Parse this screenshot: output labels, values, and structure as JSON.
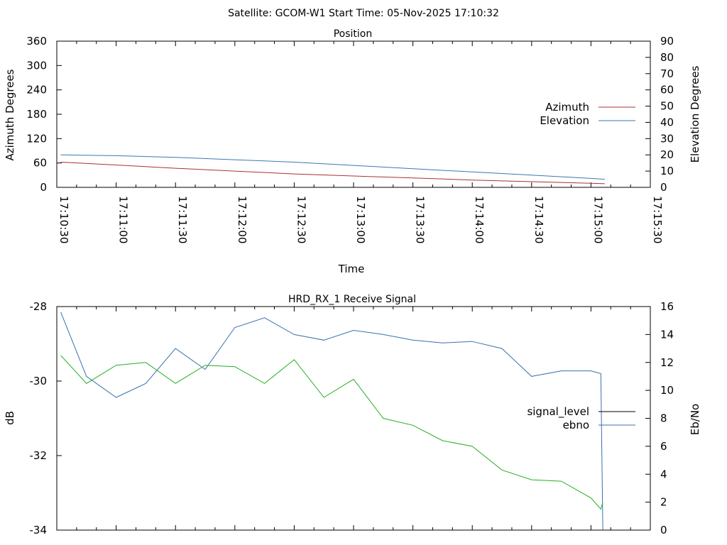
{
  "header": {
    "title": "Satellite: GCOM-W1    Start Time: 05-Nov-2025 17:10:32"
  },
  "colors": {
    "azimuth": "#a83232",
    "elevation": "#3a78b0",
    "signal_level": "#000000",
    "ebno_line": "#3a6fb0",
    "signal_trace": "#22b022",
    "axis": "#000000"
  },
  "chart_data": [
    {
      "type": "line",
      "title": "Position",
      "xlabel": "Time",
      "ylabel": "Azimuth Degrees",
      "y2label": "Elevation Degrees",
      "xlim": [
        "17:10:30",
        "17:15:30"
      ],
      "ylim": [
        0,
        360
      ],
      "y2lim": [
        0,
        90
      ],
      "x_ticks": [
        "17:10:30",
        "17:11:00",
        "17:11:30",
        "17:12:00",
        "17:12:30",
        "17:13:00",
        "17:13:30",
        "17:14:00",
        "17:14:30",
        "17:15:00",
        "17:15:30"
      ],
      "y_ticks": [
        "0",
        "60",
        "120",
        "180",
        "240",
        "300",
        "360"
      ],
      "y2_ticks": [
        "0",
        "10",
        "20",
        "30",
        "40",
        "50",
        "60",
        "70",
        "80",
        "90"
      ],
      "legend": "right",
      "series": [
        {
          "name": "Azimuth",
          "axis": "left",
          "x": [
            "17:10:32",
            "17:11:00",
            "17:11:30",
            "17:12:00",
            "17:12:30",
            "17:13:00",
            "17:13:30",
            "17:14:00",
            "17:14:30",
            "17:15:00",
            "17:15:07"
          ],
          "values": [
            62,
            55,
            47,
            40,
            33,
            28,
            23,
            18,
            14,
            10,
            9
          ]
        },
        {
          "name": "Elevation",
          "axis": "right",
          "x": [
            "17:10:32",
            "17:11:00",
            "17:11:30",
            "17:12:00",
            "17:12:30",
            "17:13:00",
            "17:13:30",
            "17:14:00",
            "17:14:30",
            "17:15:00",
            "17:15:07"
          ],
          "values": [
            20,
            19.5,
            18.5,
            17,
            15.5,
            13.5,
            11.5,
            9.5,
            7.5,
            5.5,
            5
          ]
        }
      ]
    },
    {
      "type": "line",
      "title": "HRD_RX_1 Receive Signal",
      "xlabel": "",
      "ylabel": "dB",
      "y2label": "Eb/No",
      "xlim": [
        "17:10:30",
        "17:15:30"
      ],
      "ylim": [
        -34,
        -28
      ],
      "y2lim": [
        0,
        16
      ],
      "y_ticks": [
        "-28",
        "-30",
        "-32",
        "-34"
      ],
      "y2_ticks": [
        "0",
        "2",
        "4",
        "6",
        "8",
        "10",
        "12",
        "14",
        "16"
      ],
      "legend": "right",
      "series": [
        {
          "name": "ebno",
          "axis": "right",
          "x": [
            "17:10:32",
            "17:10:45",
            "17:11:00",
            "17:11:15",
            "17:11:30",
            "17:11:45",
            "17:12:00",
            "17:12:15",
            "17:12:30",
            "17:12:45",
            "17:13:00",
            "17:13:15",
            "17:13:30",
            "17:13:45",
            "17:14:00",
            "17:14:15",
            "17:14:30",
            "17:14:45",
            "17:15:00",
            "17:15:05",
            "17:15:06"
          ],
          "values": [
            15.6,
            11,
            9.5,
            10.5,
            13,
            11.5,
            14.5,
            15.2,
            14,
            13.6,
            14.3,
            14,
            13.6,
            13.4,
            13.5,
            13,
            11,
            11.4,
            11.4,
            11.2,
            0
          ]
        },
        {
          "name": "",
          "axis": "right",
          "x": [
            "17:10:32",
            "17:10:45",
            "17:11:00",
            "17:11:15",
            "17:11:30",
            "17:11:45",
            "17:12:00",
            "17:12:15",
            "17:12:30",
            "17:12:45",
            "17:13:00",
            "17:13:15",
            "17:13:30",
            "17:13:45",
            "17:14:00",
            "17:14:15",
            "17:14:30",
            "17:14:45",
            "17:15:00",
            "17:15:05",
            "17:15:06"
          ],
          "values": [
            12.5,
            10.5,
            11.8,
            12,
            10.5,
            11.8,
            11.7,
            10.5,
            12.2,
            9.5,
            10.8,
            8,
            7.5,
            6.4,
            6,
            4.3,
            3.6,
            3.5,
            2.3,
            1.5,
            2
          ]
        },
        {
          "name": "signal_level",
          "axis": "left",
          "x": [],
          "values": []
        }
      ]
    }
  ]
}
